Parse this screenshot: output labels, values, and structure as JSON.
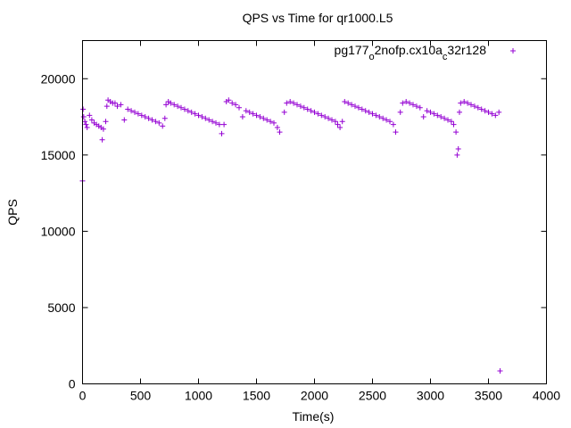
{
  "chart_data": {
    "type": "scatter",
    "title": "QPS vs Time for qr1000.L5",
    "xlabel": "Time(s)",
    "ylabel": "QPS",
    "xlim": [
      0,
      4000
    ],
    "ylim": [
      0,
      22500
    ],
    "xticks": [
      "0",
      "500",
      "1000",
      "1500",
      "2000",
      "2500",
      "3000",
      "3500",
      "4000"
    ],
    "yticks": [
      "0",
      "5000",
      "10000",
      "15000",
      "20000"
    ],
    "grid": false,
    "legend_position": "top-right",
    "series": [
      {
        "name": "pg177_o2nofp.cx10a_c32r128",
        "legend_parts": [
          {
            "text": "pg177",
            "sub": false
          },
          {
            "text": "o",
            "sub": true
          },
          {
            "text": "2nofp.cx10a",
            "sub": false
          },
          {
            "text": "c",
            "sub": true
          },
          {
            "text": "32r128",
            "sub": false
          }
        ],
        "color": "#9400d3",
        "marker": "plus",
        "points": [
          [
            0,
            13300
          ],
          [
            5,
            18000
          ],
          [
            10,
            17500
          ],
          [
            20,
            17200
          ],
          [
            30,
            17000
          ],
          [
            40,
            16800
          ],
          [
            60,
            17600
          ],
          [
            80,
            17300
          ],
          [
            100,
            17100
          ],
          [
            120,
            17000
          ],
          [
            140,
            16900
          ],
          [
            160,
            16800
          ],
          [
            170,
            16000
          ],
          [
            180,
            16700
          ],
          [
            200,
            17200
          ],
          [
            210,
            18200
          ],
          [
            220,
            18600
          ],
          [
            240,
            18500
          ],
          [
            260,
            18400
          ],
          [
            280,
            18400
          ],
          [
            300,
            18200
          ],
          [
            330,
            18300
          ],
          [
            360,
            17300
          ],
          [
            390,
            18000
          ],
          [
            420,
            17900
          ],
          [
            450,
            17800
          ],
          [
            480,
            17700
          ],
          [
            510,
            17600
          ],
          [
            540,
            17500
          ],
          [
            570,
            17400
          ],
          [
            600,
            17300
          ],
          [
            630,
            17200
          ],
          [
            660,
            17100
          ],
          [
            690,
            16900
          ],
          [
            710,
            17400
          ],
          [
            720,
            18300
          ],
          [
            740,
            18500
          ],
          [
            760,
            18400
          ],
          [
            790,
            18300
          ],
          [
            820,
            18200
          ],
          [
            850,
            18100
          ],
          [
            880,
            18000
          ],
          [
            910,
            17900
          ],
          [
            940,
            17800
          ],
          [
            970,
            17700
          ],
          [
            1000,
            17600
          ],
          [
            1030,
            17500
          ],
          [
            1060,
            17400
          ],
          [
            1090,
            17300
          ],
          [
            1120,
            17200
          ],
          [
            1150,
            17100
          ],
          [
            1180,
            17000
          ],
          [
            1200,
            16400
          ],
          [
            1220,
            17000
          ],
          [
            1240,
            18500
          ],
          [
            1260,
            18600
          ],
          [
            1290,
            18400
          ],
          [
            1320,
            18300
          ],
          [
            1350,
            18100
          ],
          [
            1380,
            17500
          ],
          [
            1410,
            17900
          ],
          [
            1440,
            17800
          ],
          [
            1470,
            17700
          ],
          [
            1500,
            17600
          ],
          [
            1530,
            17500
          ],
          [
            1560,
            17400
          ],
          [
            1590,
            17300
          ],
          [
            1620,
            17200
          ],
          [
            1650,
            17100
          ],
          [
            1680,
            16800
          ],
          [
            1700,
            16500
          ],
          [
            1740,
            17800
          ],
          [
            1760,
            18400
          ],
          [
            1790,
            18500
          ],
          [
            1820,
            18400
          ],
          [
            1850,
            18300
          ],
          [
            1880,
            18200
          ],
          [
            1910,
            18100
          ],
          [
            1940,
            18000
          ],
          [
            1970,
            17900
          ],
          [
            2000,
            17800
          ],
          [
            2030,
            17700
          ],
          [
            2060,
            17600
          ],
          [
            2090,
            17500
          ],
          [
            2120,
            17400
          ],
          [
            2150,
            17300
          ],
          [
            2180,
            17200
          ],
          [
            2200,
            17000
          ],
          [
            2220,
            16800
          ],
          [
            2240,
            17200
          ],
          [
            2260,
            18500
          ],
          [
            2290,
            18400
          ],
          [
            2320,
            18300
          ],
          [
            2350,
            18200
          ],
          [
            2380,
            18100
          ],
          [
            2410,
            18000
          ],
          [
            2440,
            17900
          ],
          [
            2470,
            17800
          ],
          [
            2500,
            17700
          ],
          [
            2530,
            17600
          ],
          [
            2560,
            17500
          ],
          [
            2590,
            17400
          ],
          [
            2620,
            17300
          ],
          [
            2650,
            17200
          ],
          [
            2680,
            17000
          ],
          [
            2700,
            16500
          ],
          [
            2740,
            17800
          ],
          [
            2760,
            18400
          ],
          [
            2790,
            18500
          ],
          [
            2820,
            18400
          ],
          [
            2850,
            18300
          ],
          [
            2880,
            18200
          ],
          [
            2910,
            18100
          ],
          [
            2940,
            17500
          ],
          [
            2970,
            17900
          ],
          [
            3000,
            17800
          ],
          [
            3030,
            17700
          ],
          [
            3060,
            17600
          ],
          [
            3090,
            17500
          ],
          [
            3120,
            17400
          ],
          [
            3150,
            17300
          ],
          [
            3180,
            17200
          ],
          [
            3200,
            17000
          ],
          [
            3220,
            16500
          ],
          [
            3230,
            15000
          ],
          [
            3240,
            15400
          ],
          [
            3250,
            17800
          ],
          [
            3260,
            18400
          ],
          [
            3290,
            18500
          ],
          [
            3320,
            18400
          ],
          [
            3350,
            18300
          ],
          [
            3380,
            18200
          ],
          [
            3410,
            18100
          ],
          [
            3440,
            18000
          ],
          [
            3470,
            17900
          ],
          [
            3500,
            17800
          ],
          [
            3530,
            17700
          ],
          [
            3560,
            17600
          ],
          [
            3590,
            17800
          ],
          [
            3600,
            850
          ]
        ]
      }
    ]
  }
}
